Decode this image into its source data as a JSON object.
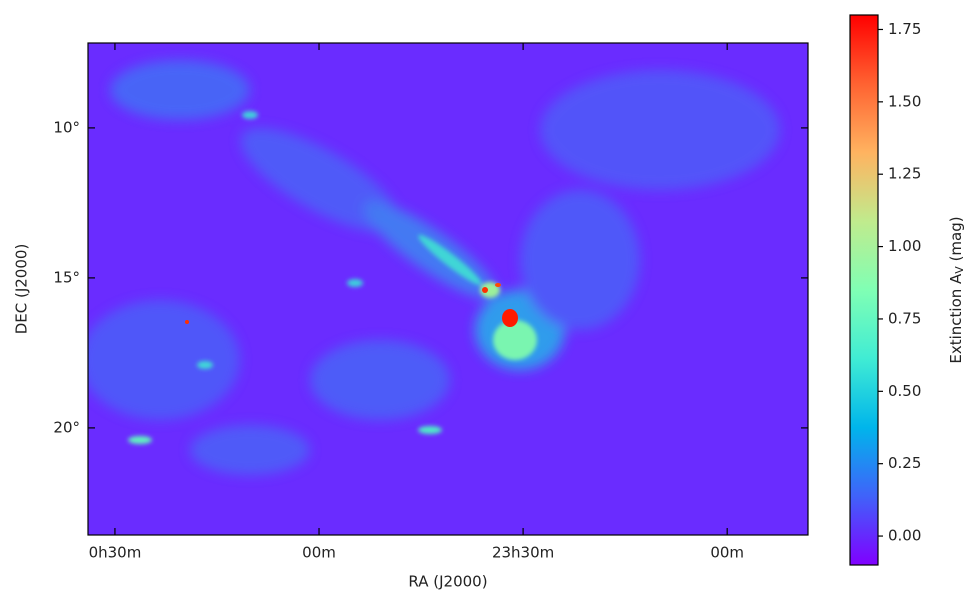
{
  "chart_data": {
    "type": "image_map",
    "xlabel": "RA (J2000)",
    "ylabel": "DEC (J2000)",
    "colorbar_label": [
      "Extinction A",
      "V",
      " (mag)"
    ],
    "colormap": "rainbow",
    "xlim": [
      8.49,
      -17.97
    ],
    "xticks": [
      {
        "value": 7.5,
        "label": "0h30m"
      },
      {
        "value": 0,
        "label": "00m"
      },
      {
        "value": -7.5,
        "label": "23h30m"
      },
      {
        "value": -15,
        "label": "00m"
      }
    ],
    "ylim": [
      23.57,
      7.17
    ],
    "yticks": [
      {
        "value": 10,
        "label": "10°"
      },
      {
        "value": 15,
        "label": "15°"
      },
      {
        "value": 20,
        "label": "20°"
      }
    ],
    "clim": [
      -0.1,
      1.8
    ],
    "cticks": [
      {
        "value": 0,
        "label": "0.00"
      },
      {
        "value": 0.25,
        "label": "0.25"
      },
      {
        "value": 0.5,
        "label": "0.50"
      },
      {
        "value": 0.75,
        "label": "0.75"
      },
      {
        "value": 1,
        "label": "1.00"
      },
      {
        "value": 1.25,
        "label": "1.25"
      },
      {
        "value": 1.5,
        "label": "1.50"
      },
      {
        "value": 1.75,
        "label": "1.75"
      }
    ]
  }
}
